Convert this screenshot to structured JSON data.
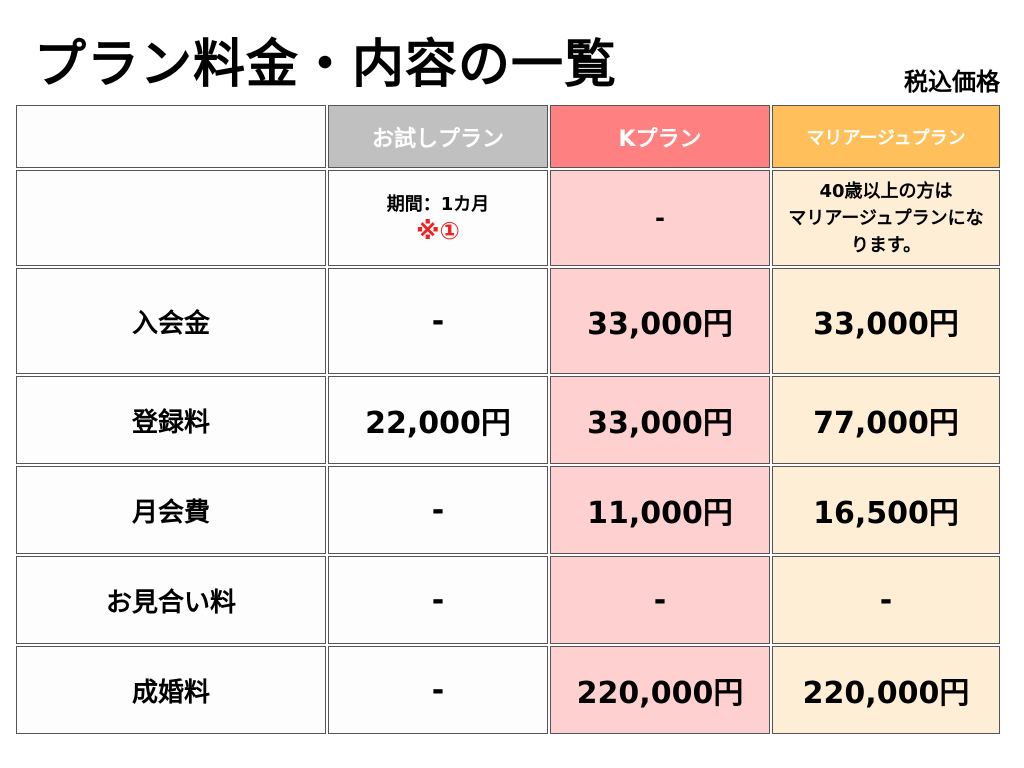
{
  "title": "プラン料金・内容の一覧",
  "tax_note": "税込価格",
  "colors": {
    "trial_header": "#c0c0c0",
    "k_header": "#ff8080",
    "marriage_header": "#ffbf5a",
    "k_cell": "#ffd0d0",
    "marriage_cell": "#ffeed6"
  },
  "headers": [
    "",
    "お試しプラン",
    "Kプラン",
    "マリアージュプラン"
  ],
  "notes": {
    "trial_line1": "期間：1カ月",
    "trial_line2": "※①",
    "k": "-",
    "marriage_line1": "40歳以上の方は",
    "marriage_line2": "マリアージュプランにな",
    "marriage_line3": "ります。"
  },
  "rows": [
    {
      "label": "入会金",
      "trial": "-",
      "k": "33,000円",
      "marriage": "33,000円"
    },
    {
      "label": "登録料",
      "trial": "22,000円",
      "k": "33,000円",
      "marriage": "77,000円"
    },
    {
      "label": "月会費",
      "trial": "-",
      "k": "11,000円",
      "marriage": "16,500円"
    },
    {
      "label": "お見合い料",
      "trial": "-",
      "k": "-",
      "marriage": "-"
    },
    {
      "label": "成婚料",
      "trial": "-",
      "k": "220,000円",
      "marriage": "220,000円"
    }
  ]
}
